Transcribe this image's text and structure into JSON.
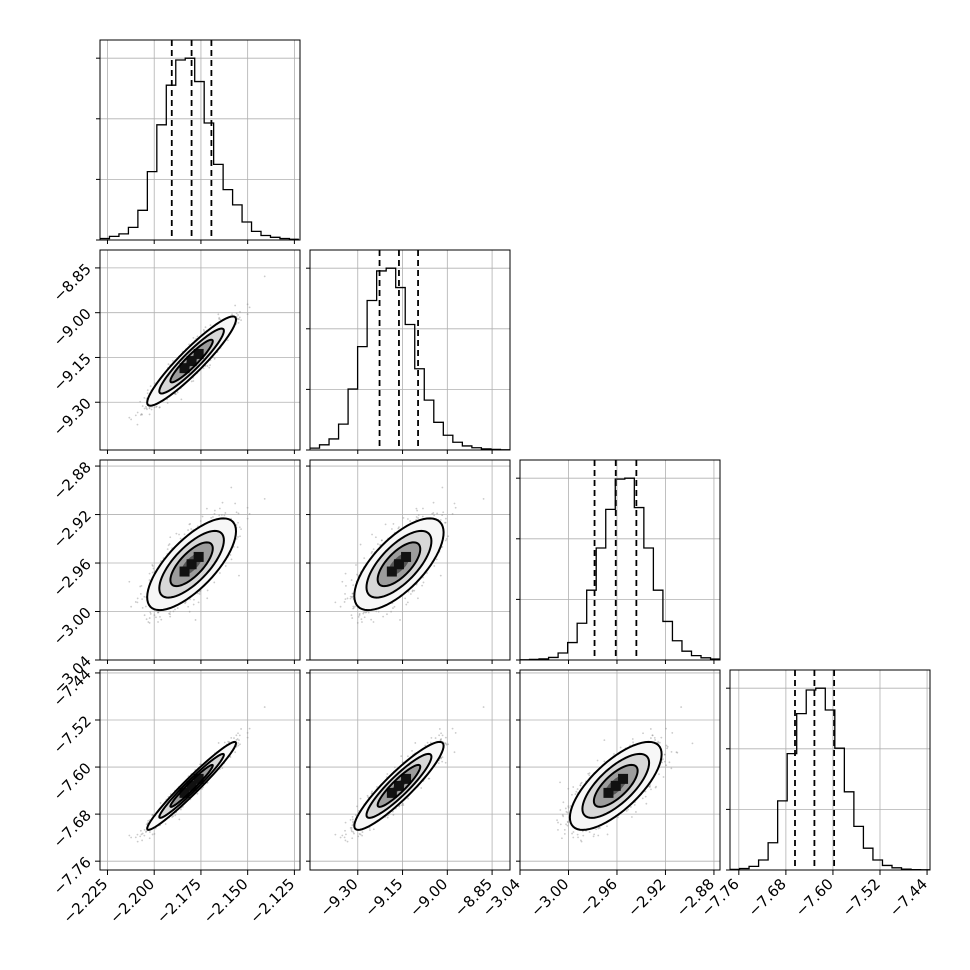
{
  "chart_data": {
    "type": "corner",
    "parameters": [
      {
        "range": [
          -2.229,
          -2.122
        ],
        "ticks": [
          "−2.225",
          "−2.200",
          "−2.175",
          "−2.150",
          "−2.125"
        ],
        "tick_values": [
          -2.225,
          -2.2,
          -2.175,
          -2.15,
          -2.125
        ],
        "mean": -2.18,
        "sd": 0.0108,
        "quantiles": [
          -2.1906,
          -2.18,
          -2.1694
        ],
        "histogram": {
          "edges_start": -2.229,
          "edges_step": 0.005067,
          "counts": [
            8,
            20,
            34,
            70,
            165,
            380,
            640,
            860,
            1000,
            1010,
            880,
            650,
            420,
            280,
            195,
            100,
            48,
            25,
            15,
            8,
            4
          ]
        }
      },
      {
        "range": [
          -9.46,
          -8.79
        ],
        "ticks": [
          "−9.30",
          "−9.15",
          "−9.00",
          "−8.85"
        ],
        "tick_values": [
          -9.3,
          -9.15,
          -9.0,
          -8.85
        ],
        "mean": -9.162,
        "sd": 0.068,
        "quantiles": [
          -9.227,
          -9.162,
          -9.098
        ],
        "histogram": {
          "edges_start": -9.46,
          "edges_step": 0.0319,
          "counts": [
            10,
            28,
            60,
            140,
            330,
            560,
            810,
            970,
            985,
            880,
            680,
            440,
            270,
            150,
            80,
            42,
            22,
            12,
            6,
            3,
            1
          ]
        }
      },
      {
        "range": [
          -3.04,
          -2.875
        ],
        "ticks": [
          "−3.04",
          "−3.00",
          "−2.96",
          "−2.92",
          "−2.88"
        ],
        "tick_values": [
          -3.04,
          -3.0,
          -2.96,
          -2.92,
          -2.88
        ],
        "mean": -2.961,
        "sd": 0.0172,
        "quantiles": [
          -2.9785,
          -2.961,
          -2.944
        ],
        "histogram": {
          "edges_start": -3.04,
          "edges_step": 0.00786,
          "counts": [
            1,
            3,
            6,
            14,
            38,
            95,
            200,
            380,
            610,
            820,
            985,
            990,
            830,
            610,
            380,
            210,
            105,
            48,
            24,
            12,
            5
          ]
        }
      },
      {
        "range": [
          -7.775,
          -7.435
        ],
        "ticks": [
          "−7.76",
          "−7.68",
          "−7.60",
          "−7.52",
          "−7.44"
        ],
        "tick_values": [
          -7.76,
          -7.68,
          -7.6,
          -7.52,
          -7.44
        ],
        "mean": -7.632,
        "sd": 0.034,
        "quantiles": [
          -7.6645,
          -7.6315,
          -7.598
        ],
        "histogram": {
          "edges_start": -7.775,
          "edges_step": 0.0162,
          "counts": [
            3,
            8,
            20,
            55,
            150,
            380,
            640,
            860,
            990,
            1000,
            880,
            670,
            430,
            240,
            120,
            55,
            25,
            12,
            5,
            2,
            1
          ]
        }
      }
    ],
    "correlations": [
      [
        1.0,
        0.93,
        0.72,
        0.97
      ],
      [
        0.93,
        1.0,
        0.69,
        0.91
      ],
      [
        0.72,
        0.69,
        1.0,
        0.72
      ],
      [
        0.97,
        0.91,
        0.72,
        1.0
      ]
    ],
    "n_samples": 1400,
    "diagonal_y_ticks": 4,
    "grid": true
  }
}
